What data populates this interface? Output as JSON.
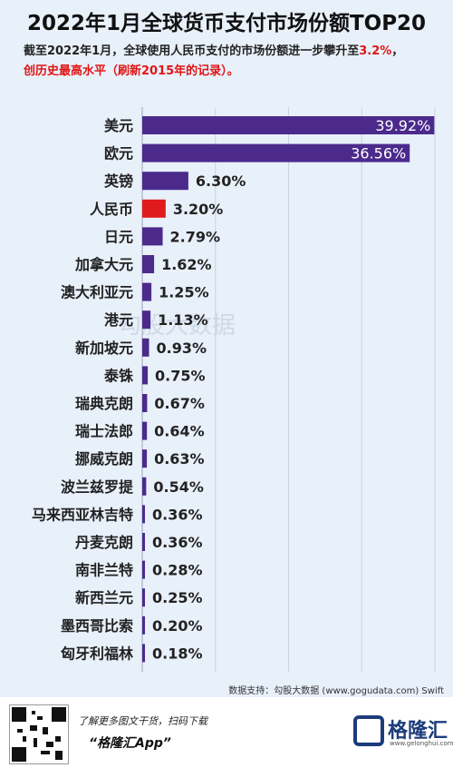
{
  "title": "2022年1月全球货币支付市场份额TOP20",
  "subtitle_part1": "截至2022年1月，全球使用人民币支付的市场份额进一步攀升至",
  "subtitle_highlight": "3.2%",
  "subtitle_part2": "，",
  "subtitle_line2": "创历史最高水平（刷新2015年的记录）。",
  "source": "数据支持：勾股大数据 (www.gogudata.com) Swift",
  "watermark": "勾股大数据",
  "footer": {
    "slogan_line1": "了解更多图文干货，扫码下载",
    "slogan_line2": "“格隆汇App”",
    "brand": "格隆汇",
    "brand_url": "www.gelonghui.com"
  },
  "colors": {
    "bar": "#4b2a8c",
    "highlight": "#e01b1b",
    "background": "#e8f0fa"
  },
  "chart_data": {
    "type": "bar",
    "orientation": "horizontal",
    "categories": [
      "美元",
      "欧元",
      "英镑",
      "人民币",
      "日元",
      "加拿大元",
      "澳大利亚元",
      "港元",
      "新加坡元",
      "泰铢",
      "瑞典克朗",
      "瑞士法郎",
      "挪威克朗",
      "波兰兹罗提",
      "马来西亚林吉特",
      "丹麦克朗",
      "南非兰特",
      "新西兰元",
      "墨西哥比索",
      "匈牙利福林"
    ],
    "values": [
      39.92,
      36.56,
      6.3,
      3.2,
      2.79,
      1.62,
      1.25,
      1.13,
      0.93,
      0.75,
      0.67,
      0.64,
      0.63,
      0.54,
      0.36,
      0.36,
      0.28,
      0.25,
      0.2,
      0.18
    ],
    "labels": [
      "39.92%",
      "36.56%",
      "6.30%",
      "3.20%",
      "2.79%",
      "1.62%",
      "1.25%",
      "1.13%",
      "0.93%",
      "0.75%",
      "0.67%",
      "0.64%",
      "0.63%",
      "0.54%",
      "0.36%",
      "0.36%",
      "0.28%",
      "0.25%",
      "0.20%",
      "0.18%"
    ],
    "highlight_category": "人民币",
    "xlim": [
      0,
      40
    ],
    "grid": true
  }
}
